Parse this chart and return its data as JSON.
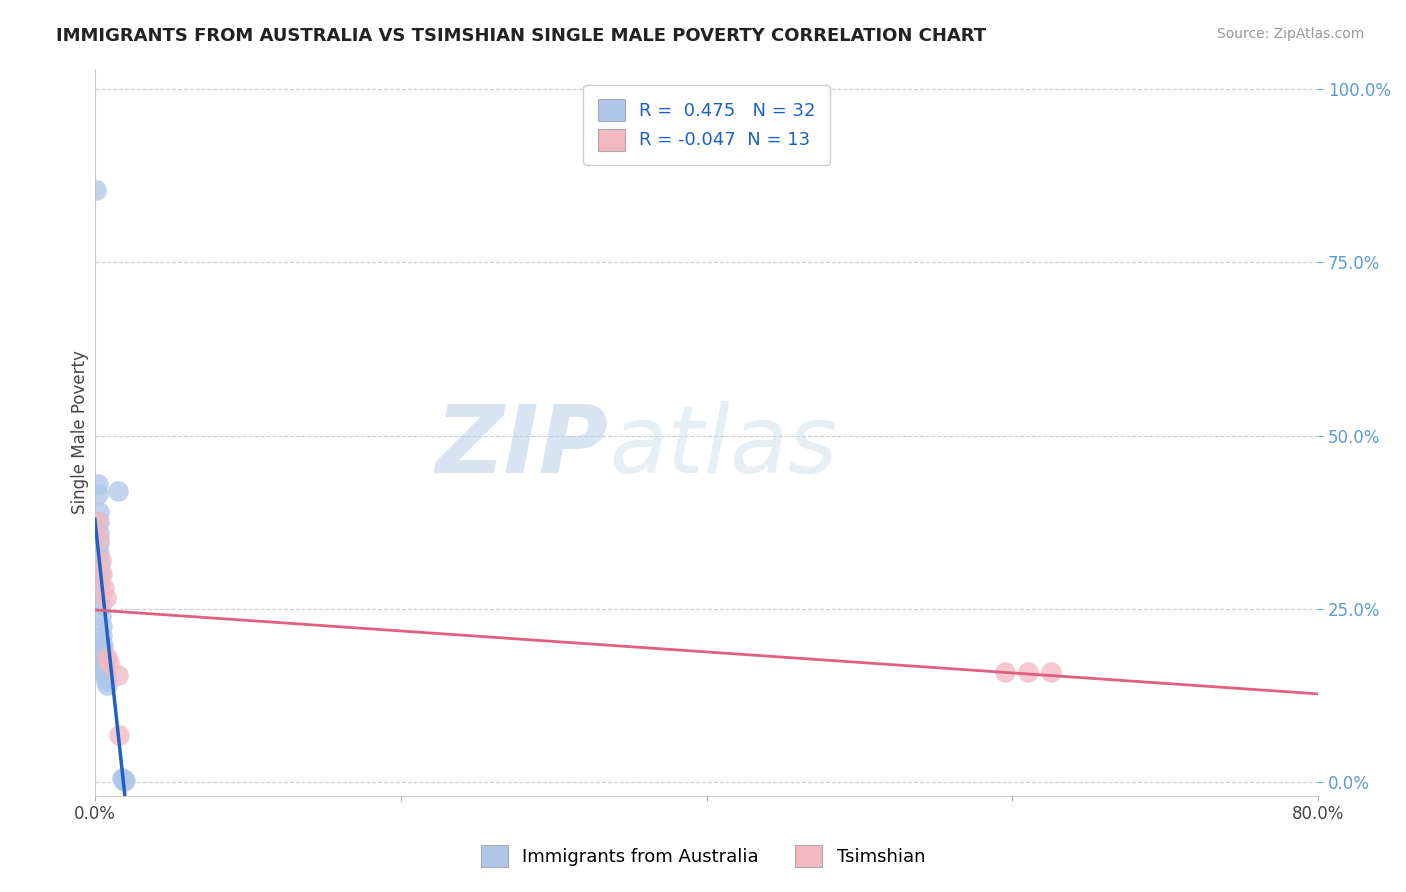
{
  "title": "IMMIGRANTS FROM AUSTRALIA VS TSIMSHIAN SINGLE MALE POVERTY CORRELATION CHART",
  "source": "Source: ZipAtlas.com",
  "ylabel_label": "Single Male Poverty",
  "legend_label1": "Immigrants from Australia",
  "legend_label2": "Tsimshian",
  "R1": 0.475,
  "N1": 32,
  "R2": -0.047,
  "N2": 13,
  "blue_color": "#aec6e8",
  "pink_color": "#f4b8c1",
  "blue_line_color": "#2060c0",
  "pink_line_color": "#e06080",
  "watermark_zip": "ZIP",
  "watermark_atlas": "atlas",
  "blue_dots": [
    [
      0.001,
      0.855
    ],
    [
      0.002,
      0.43
    ],
    [
      0.002,
      0.415
    ],
    [
      0.0025,
      0.39
    ],
    [
      0.0025,
      0.375
    ],
    [
      0.0028,
      0.36
    ],
    [
      0.003,
      0.345
    ],
    [
      0.003,
      0.33
    ],
    [
      0.0032,
      0.315
    ],
    [
      0.0033,
      0.3
    ],
    [
      0.0035,
      0.285
    ],
    [
      0.0038,
      0.27
    ],
    [
      0.004,
      0.255
    ],
    [
      0.0042,
      0.24
    ],
    [
      0.0045,
      0.225
    ],
    [
      0.0048,
      0.21
    ],
    [
      0.005,
      0.2
    ],
    [
      0.0052,
      0.195
    ],
    [
      0.0055,
      0.185
    ],
    [
      0.0058,
      0.178
    ],
    [
      0.006,
      0.17
    ],
    [
      0.0062,
      0.165
    ],
    [
      0.0065,
      0.16
    ],
    [
      0.0068,
      0.155
    ],
    [
      0.007,
      0.15
    ],
    [
      0.0075,
      0.145
    ],
    [
      0.008,
      0.14
    ],
    [
      0.015,
      0.42
    ],
    [
      0.018,
      0.006
    ],
    [
      0.0185,
      0.004
    ],
    [
      0.019,
      0.002
    ],
    [
      0.02,
      0.003
    ]
  ],
  "pink_dots": [
    [
      0.002,
      0.375
    ],
    [
      0.003,
      0.35
    ],
    [
      0.004,
      0.32
    ],
    [
      0.005,
      0.3
    ],
    [
      0.006,
      0.28
    ],
    [
      0.007,
      0.265
    ],
    [
      0.008,
      0.18
    ],
    [
      0.009,
      0.172
    ],
    [
      0.015,
      0.155
    ],
    [
      0.016,
      0.068
    ],
    [
      0.595,
      0.158
    ],
    [
      0.61,
      0.158
    ],
    [
      0.625,
      0.158
    ]
  ],
  "xlim": [
    0.0,
    0.8
  ],
  "ylim": [
    -0.02,
    1.03
  ],
  "xticks": [
    0.0,
    0.2,
    0.4,
    0.6,
    0.8
  ],
  "xtick_labels": [
    "0.0%",
    "",
    "",
    "",
    "80.0%"
  ],
  "yticks": [
    0.0,
    0.25,
    0.5,
    0.75,
    1.0
  ],
  "ytick_labels": [
    "0.0%",
    "25.0%",
    "50.0%",
    "75.0%",
    "100.0%"
  ]
}
